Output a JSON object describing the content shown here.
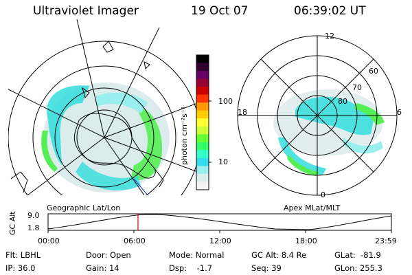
{
  "header": {
    "instrument": "Ultraviolet Imager",
    "date": "19 Oct 07",
    "time": "06:39:02 UT"
  },
  "colorbar": {
    "unit_label": "photon cm⁻²s⁻¹",
    "ticks": [
      "100",
      "10"
    ],
    "colors": [
      "#000000",
      "#330033",
      "#660066",
      "#990033",
      "#cc0000",
      "#ff3300",
      "#ff9900",
      "#ffcc00",
      "#ffff33",
      "#ccff33",
      "#66ff33",
      "#33ff66",
      "#33ffcc",
      "#33ddee",
      "#99eeee",
      "#ddeeee",
      "#f4f4f4"
    ]
  },
  "left_map": {
    "label": "Geographic Lat/Lon"
  },
  "right_map": {
    "label": "Apex MLat/MLT",
    "mlt_labels": {
      "top": "12",
      "left": "18",
      "right": "6",
      "bottom": "0"
    },
    "lat_labels": [
      "60",
      "70",
      "80"
    ]
  },
  "altitude_plot": {
    "ylabel": "GC Alt",
    "yticks": [
      "9.0",
      "1.8"
    ],
    "xticks": [
      "00:00",
      "06:00",
      "12:00",
      "18:00",
      "23:59"
    ],
    "marker_time": "06:39"
  },
  "status": {
    "flt": "Flt: LBHL",
    "ip": "IP: 36.0",
    "door": "Door: Open",
    "gain": "Gain: 14",
    "mode": "Mode: Normal",
    "dsp": "Dsp:    -1.7",
    "gc_alt": "GC Alt: 8.4 Re",
    "seq": "Seq: 39",
    "glat": "GLat:  -81.9",
    "glon": "GLon: 255.3"
  },
  "accent_colors": {
    "aurora_cyan": "#33dddd",
    "aurora_green": "#55ee55",
    "marker_red": "#dd0000"
  }
}
